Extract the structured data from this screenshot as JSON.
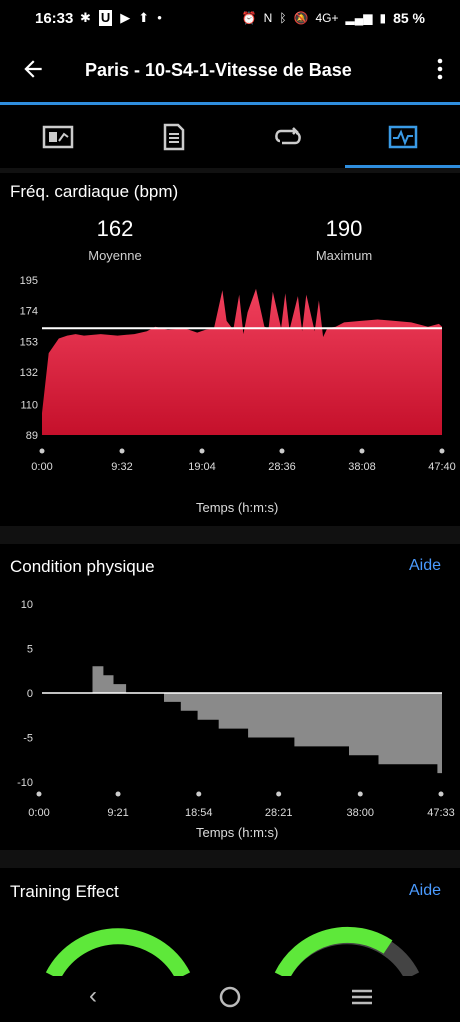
{
  "status": {
    "time": "16:33",
    "battery": "85 %",
    "network": "4G+",
    "left_icons": [
      "slack-icon",
      "u-icon",
      "youtube-icon",
      "upload-icon",
      "dot-icon"
    ],
    "right_icons": [
      "alarm-icon",
      "nfc-icon",
      "bluetooth-icon",
      "mute-icon",
      "signal-icon",
      "battery-icon"
    ]
  },
  "header": {
    "title": "Paris - 10-S4-1-Vitesse de Base",
    "back_icon": "arrow-left-icon",
    "more_icon": "more-vert-icon"
  },
  "tabs": [
    {
      "name": "summary",
      "icon": "summary-icon",
      "active": false
    },
    {
      "name": "details",
      "icon": "details-icon",
      "active": false
    },
    {
      "name": "laps",
      "icon": "laps-icon",
      "active": false
    },
    {
      "name": "charts",
      "icon": "charts-icon",
      "active": true
    }
  ],
  "hr_section": {
    "title": "Fréq. cardiaque (bpm)",
    "avg_value": "162",
    "avg_label": "Moyenne",
    "max_value": "190",
    "max_label": "Maximum",
    "y_ticks": [
      "195",
      "174",
      "153",
      "132",
      "110",
      "89"
    ],
    "x_ticks": [
      "0:00",
      "9:32",
      "19:04",
      "28:36",
      "38:08",
      "47:40"
    ],
    "x_title": "Temps (h:m:s)",
    "color_top": "#f0405c",
    "color_bottom": "#c5102b"
  },
  "cond_section": {
    "title": "Condition physique",
    "help": "Aide",
    "y_ticks": [
      "10",
      "5",
      "0",
      "-5",
      "-10"
    ],
    "x_ticks": [
      "0:00",
      "9:21",
      "18:54",
      "28:21",
      "38:00",
      "47:33"
    ],
    "x_title": "Temps (h:m:s)",
    "color": "#8a8a8a"
  },
  "te_section": {
    "title": "Training Effect",
    "help": "Aide",
    "gauge_color": "#5ee83a"
  },
  "chart_data": [
    {
      "type": "area",
      "title": "Fréq. cardiaque (bpm)",
      "xlabel": "Temps (h:m:s)",
      "ylabel": "",
      "ylim": [
        89,
        195
      ],
      "x_range_min": [
        0,
        47.67
      ],
      "reference_line": 162,
      "series": [
        {
          "values_x_min": [
            0,
            0.8,
            2,
            3,
            4,
            5,
            7,
            9,
            11,
            12.5,
            13.5,
            15,
            17,
            18.5,
            19.5,
            20.5,
            21.5,
            22,
            22.8,
            23.5,
            24,
            24.5,
            25.5,
            26.5,
            27,
            27.5,
            28.5,
            29,
            29.5,
            30.5,
            31,
            31.5,
            32.5,
            33,
            33.5,
            34,
            35,
            36,
            38,
            40,
            42,
            44,
            46,
            47.3,
            47.67
          ],
          "values_bpm": [
            104,
            145,
            155,
            157,
            158,
            157,
            158,
            157,
            158,
            160,
            163,
            161,
            162,
            159,
            161,
            162,
            188,
            167,
            161,
            185,
            158,
            173,
            189,
            163,
            162,
            187,
            162,
            186,
            161,
            184,
            160,
            185,
            160,
            181,
            156,
            162,
            163,
            166,
            167,
            168,
            167,
            166,
            163,
            165,
            163
          ]
        }
      ]
    },
    {
      "type": "area",
      "title": "Condition physique",
      "xlabel": "Temps (h:m:s)",
      "ylabel": "",
      "ylim": [
        -10,
        10
      ],
      "x_range_min": [
        0,
        47.55
      ],
      "series": [
        {
          "step_x_min": [
            0,
            6,
            7.3,
            8.5,
            10,
            14.5,
            16.5,
            18.5,
            21,
            24.5,
            30,
            36.5,
            40,
            47
          ],
          "step_values": [
            0,
            3,
            2,
            1,
            0,
            -1,
            -2,
            -3,
            -4,
            -5,
            -6,
            -7,
            -8,
            -9
          ]
        }
      ]
    }
  ]
}
